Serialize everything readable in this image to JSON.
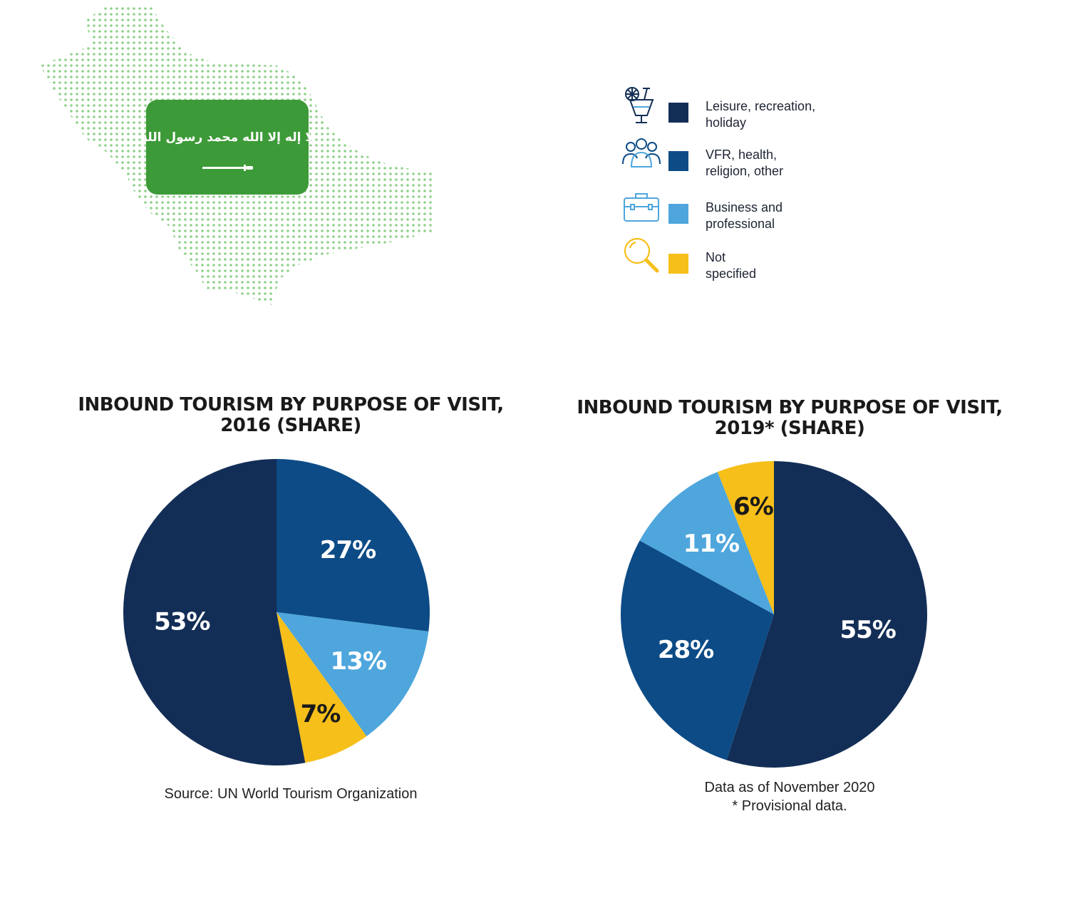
{
  "flag": {
    "emblem_text": "لا إله إلا الله محمد رسول الله",
    "color": "#3d9a38"
  },
  "legend": [
    {
      "icon": "cocktail-glass-icon",
      "label": "Leisure, recreation,\nholiday",
      "color": "#132e56"
    },
    {
      "icon": "people-group-icon",
      "label": "VFR, health,\nreligion, other",
      "color": "#0c4b86"
    },
    {
      "icon": "briefcase-icon",
      "label": "Business and\nprofessional",
      "color": "#4ea6dc"
    },
    {
      "icon": "magnifier-icon",
      "label": "Not\nspecified",
      "color": "#f6bf1a"
    }
  ],
  "charts": [
    {
      "title": "INBOUND TOURISM BY PURPOSE OF VISIT,\n2016 (SHARE)",
      "notes": [
        "Source: UN World Tourism Organization"
      ]
    },
    {
      "title": "INBOUND TOURISM BY PURPOSE OF VISIT,\n2019* (SHARE)",
      "notes": [
        "Data as of November 2020",
        "* Provisional data."
      ]
    }
  ],
  "chart_data": [
    {
      "type": "pie",
      "title": "INBOUND TOURISM BY PURPOSE OF VISIT, 2016 (SHARE)",
      "slices": [
        {
          "name": "VFR, health, religion, other",
          "value": 27,
          "label": "27%",
          "color": "#0c4b86"
        },
        {
          "name": "Business and professional",
          "value": 13,
          "label": "13%",
          "color": "#4ea6dc"
        },
        {
          "name": "Not specified",
          "value": 7,
          "label": "7%",
          "color": "#f6bf1a"
        },
        {
          "name": "Leisure, recreation, holiday",
          "value": 53,
          "label": "53%",
          "color": "#132e56"
        }
      ]
    },
    {
      "type": "pie",
      "title": "INBOUND TOURISM BY PURPOSE OF VISIT, 2019* (SHARE)",
      "slices": [
        {
          "name": "Leisure, recreation, holiday",
          "value": 55,
          "label": "55%",
          "color": "#132e56"
        },
        {
          "name": "VFR, health, religion, other",
          "value": 28,
          "label": "28%",
          "color": "#0c4b86"
        },
        {
          "name": "Business and professional",
          "value": 11,
          "label": "11%",
          "color": "#4ea6dc"
        },
        {
          "name": "Not specified",
          "value": 6,
          "label": "6%",
          "color": "#f6bf1a"
        }
      ]
    }
  ]
}
